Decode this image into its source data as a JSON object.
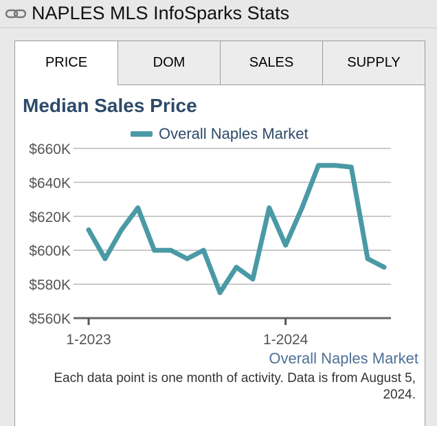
{
  "widget": {
    "title": "NAPLES MLS InfoSparks Stats",
    "icon": "chain-link-icon"
  },
  "tabs": [
    {
      "label": "PRICE",
      "active": true
    },
    {
      "label": "DOM",
      "active": false
    },
    {
      "label": "SALES",
      "active": false
    },
    {
      "label": "SUPPLY",
      "active": false
    }
  ],
  "chart_data": {
    "type": "line",
    "title": "Median Sales Price",
    "ylim": [
      560000,
      660000
    ],
    "y_ticks": [
      560000,
      580000,
      600000,
      620000,
      640000,
      660000
    ],
    "y_tick_labels": [
      "$560K",
      "$580K",
      "$600K",
      "$620K",
      "$640K",
      "$660K"
    ],
    "x_tick_labels": [
      {
        "label": "1-2023",
        "index": 0
      },
      {
        "label": "1-2024",
        "index": 12
      }
    ],
    "x": [
      "1-2023",
      "2-2023",
      "3-2023",
      "4-2023",
      "5-2023",
      "6-2023",
      "7-2023",
      "8-2023",
      "9-2023",
      "10-2023",
      "11-2023",
      "12-2023",
      "1-2024",
      "2-2024",
      "3-2024",
      "4-2024",
      "5-2024",
      "6-2024",
      "7-2024"
    ],
    "grid": true,
    "legend_position": "top",
    "series": [
      {
        "name": "Overall Naples Market",
        "color": "#4a9aa5",
        "values": [
          612000,
          595000,
          612000,
          625000,
          600000,
          600000,
          595000,
          600000,
          575000,
          590000,
          583000,
          625000,
          603000,
          625000,
          650000,
          650000,
          649000,
          595000,
          590000
        ]
      }
    ]
  },
  "caption": "Overall Naples Market",
  "footnote": "Each data point is one month of activity. Data is from August 5, 2024."
}
